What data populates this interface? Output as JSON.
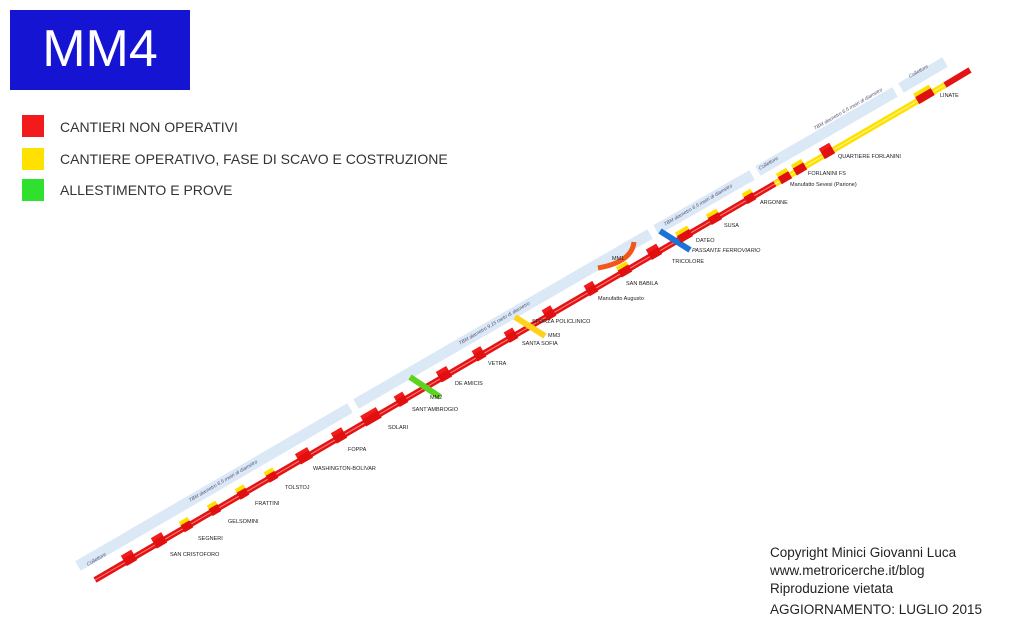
{
  "header": {
    "title": "MM4"
  },
  "legend": [
    {
      "label": "CANTIERI NON OPERATIVI"
    },
    {
      "label": "CANTIERE OPERATIVO, FASE DI SCAVO E COSTRUZIONE"
    },
    {
      "label": "ALLESTIMENTO E PROVE"
    }
  ],
  "stations": [
    "SAN CRISTOFORO",
    "SEGNERI",
    "GELSOMINI",
    "FRATTINI",
    "TOLSTOJ",
    "WASHINGTON-BOLIVAR",
    "FOPPA",
    "SOLARI",
    "SANT'AMBROGIO",
    "DE AMICIS",
    "VETRA",
    "SANTA SOFIA",
    "SFORZA POLICLINICO",
    "Manufatto Augusto",
    "SAN BABILA",
    "TRICOLORE",
    "DATEO",
    "SUSA",
    "ARGONNE",
    "Manufatto Sevesi (Parione)",
    "FORLANINI FS",
    "QUARTIERE FORLANINI",
    "LINATE"
  ],
  "interchanges": [
    "MM2",
    "MM3",
    "MM1",
    "PASSANTE FERROVIARIO"
  ],
  "tunnel_labels": [
    "Collettore",
    "TBM diametro 6,5 metri di diametro",
    "TBM diametro 9,15 metri di diametro",
    "TBM diametro 6,5 metri di diametro",
    "Collettore",
    "TBM diametro 6,5 metri di diametro",
    "Collettore"
  ],
  "footer": [
    "Copyright Minici Giovanni Luca",
    "www.metroricerche.it/blog",
    "Riproduzione vietata",
    "AGGIORNAMENTO: LUGLIO 2015"
  ]
}
